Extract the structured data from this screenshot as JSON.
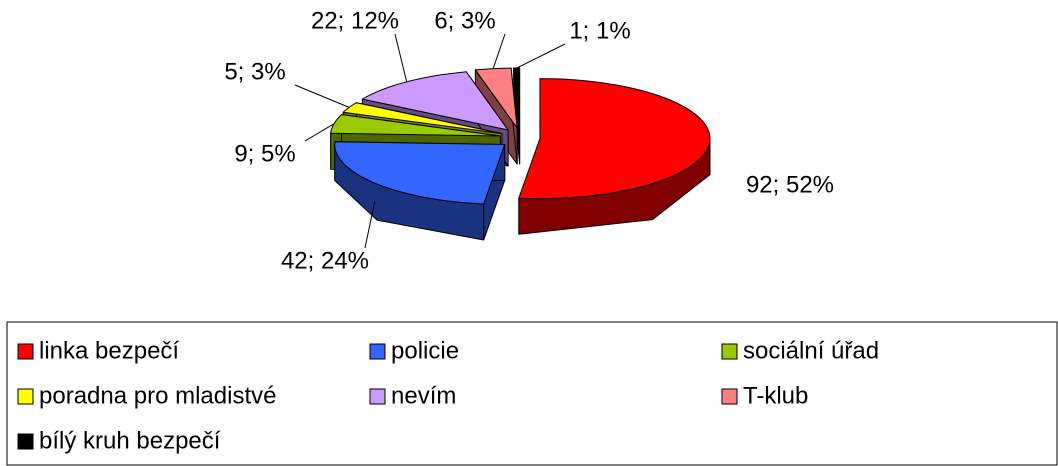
{
  "chart_data": {
    "type": "pie3d",
    "categories": [
      "linka bezpečí",
      "policie",
      "sociální úřad",
      "poradna pro mladistvé",
      "nevím",
      "T-klub",
      "bílý kruh bezpečí"
    ],
    "values": [
      92,
      42,
      9,
      5,
      22,
      6,
      1
    ],
    "value_labels": [
      "92; 52%",
      "42; 24%",
      "9; 5%",
      "5; 3%",
      "22; 12%",
      "6; 3%",
      "1; 1%"
    ],
    "colors": [
      "#ff0000",
      "#3366ff",
      "#99cc00",
      "#ffff00",
      "#cc99ff",
      "#ff8080",
      "#000000"
    ],
    "legend": "bottom"
  }
}
